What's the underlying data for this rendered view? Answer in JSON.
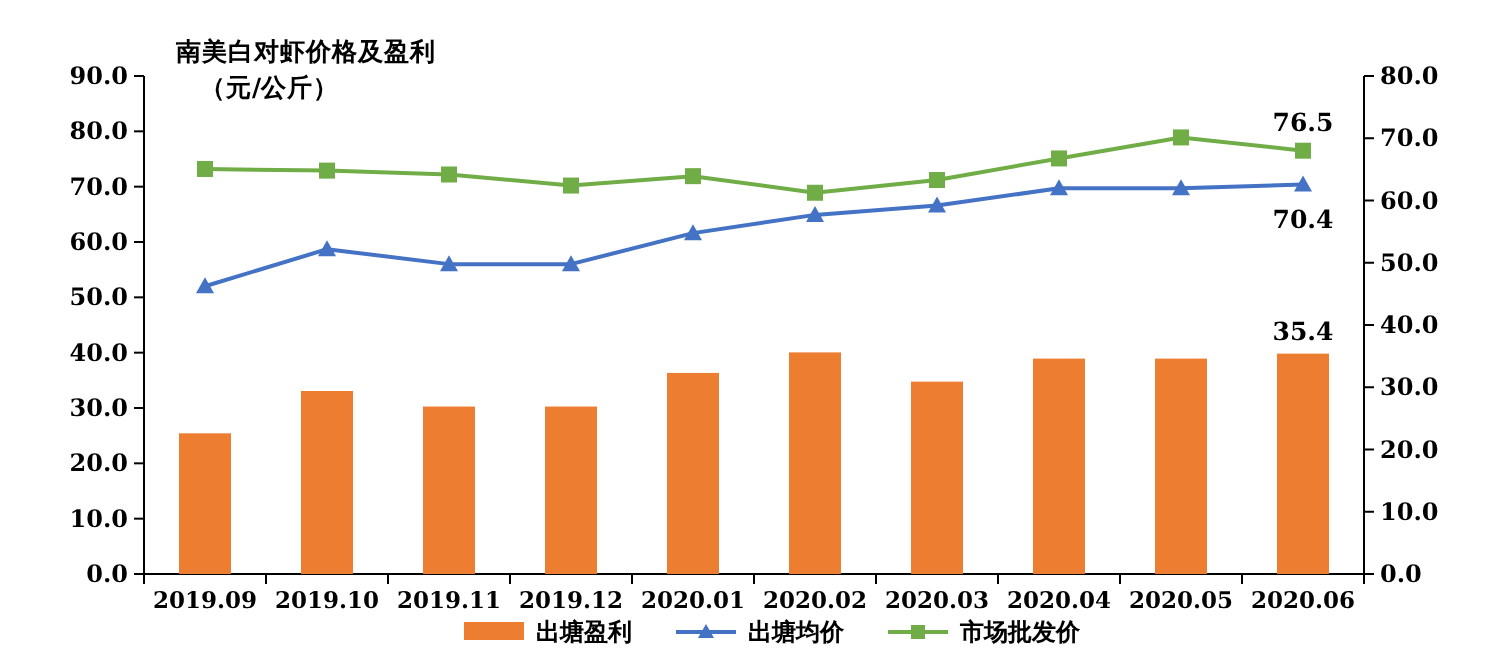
{
  "chart_data": {
    "type": "bar",
    "title": "南美白对虾价格及盈利",
    "subtitle": "（元/公斤）",
    "categories": [
      "2019.09",
      "2019.10",
      "2019.11",
      "2019.12",
      "2020.01",
      "2020.02",
      "2020.03",
      "2020.04",
      "2020.05",
      "2020.06"
    ],
    "series": [
      {
        "name": "出塘盈利",
        "axis": "y2",
        "color": "#ed7d31",
        "values": [
          22.6,
          29.4,
          26.9,
          26.9,
          32.3,
          35.6,
          30.9,
          34.6,
          34.6,
          35.4
        ],
        "value_labels": [
          null,
          null,
          null,
          null,
          null,
          null,
          null,
          null,
          null,
          "35.4"
        ]
      },
      {
        "name": "出塘均价",
        "type": "line",
        "marker": "triangle",
        "color": "#4472c4",
        "values": [
          52.0,
          58.7,
          56.0,
          56.0,
          61.6,
          64.9,
          66.6,
          69.7,
          69.7,
          70.4
        ],
        "value_labels": [
          null,
          null,
          null,
          null,
          null,
          null,
          null,
          null,
          null,
          "70.4"
        ]
      },
      {
        "name": "市场批发价",
        "type": "line",
        "marker": "square",
        "color": "#70ad47",
        "values": [
          73.2,
          72.9,
          72.2,
          70.2,
          71.9,
          68.9,
          71.2,
          75.1,
          78.9,
          76.5
        ],
        "value_labels": [
          null,
          null,
          null,
          null,
          null,
          null,
          null,
          null,
          null,
          "76.5"
        ]
      }
    ],
    "ylim": [
      0,
      90
    ],
    "yticks": [
      {
        "value": 0,
        "label": "0.0"
      },
      {
        "value": 10,
        "label": "10.0"
      },
      {
        "value": 20,
        "label": "20.0"
      },
      {
        "value": 30,
        "label": "30.0"
      },
      {
        "value": 40,
        "label": "40.0"
      },
      {
        "value": 50,
        "label": "50.0"
      },
      {
        "value": 60,
        "label": "60.0"
      },
      {
        "value": 70,
        "label": "70.0"
      },
      {
        "value": 80,
        "label": "80.0"
      },
      {
        "value": 90,
        "label": "90.0"
      }
    ],
    "y2lim": [
      0,
      80
    ],
    "y2ticks": [
      {
        "value": 0,
        "label": "0.0"
      },
      {
        "value": 10,
        "label": "10.0"
      },
      {
        "value": 20,
        "label": "20.0"
      },
      {
        "value": 30,
        "label": "30.0"
      },
      {
        "value": 40,
        "label": "40.0"
      },
      {
        "value": 50,
        "label": "50.0"
      },
      {
        "value": 60,
        "label": "60.0"
      },
      {
        "value": 70,
        "label": "70.0"
      },
      {
        "value": 80,
        "label": "80.0"
      }
    ],
    "grid": false,
    "legend": "bottom"
  }
}
